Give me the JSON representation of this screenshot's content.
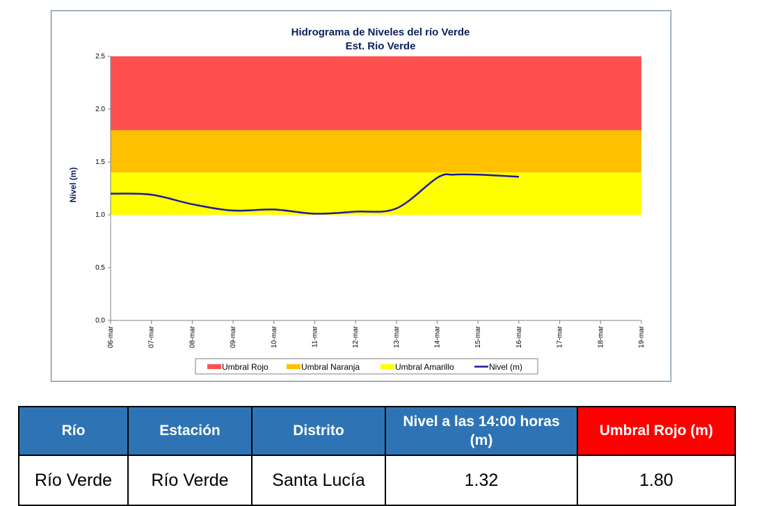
{
  "chart_data": {
    "type": "line",
    "title": "Hidrograma de Niveles del río Verde",
    "subtitle": "Est. Rio Verde",
    "ylabel": "Nivel (m)",
    "xlabel": "",
    "ylim": [
      0,
      2.5
    ],
    "yticks": [
      "0.0",
      "0.5",
      "1.0",
      "1.5",
      "2.0",
      "2.5"
    ],
    "categories": [
      "06-mar",
      "07-mar",
      "08-mar",
      "09-mar",
      "10-mar",
      "11-mar",
      "12-mar",
      "13-mar",
      "14-mar",
      "15-mar",
      "16-mar",
      "17-mar",
      "18-mar",
      "19-mar"
    ],
    "thresholds": [
      {
        "name": "Umbral Rojo",
        "from": 1.8,
        "to": 2.5,
        "color": "#ff5050"
      },
      {
        "name": "Umbral Naranja",
        "from": 1.4,
        "to": 1.8,
        "color": "#ffc000"
      },
      {
        "name": "Umbral Amarillo",
        "from": 1.0,
        "to": 1.4,
        "color": "#ffff00"
      }
    ],
    "series": [
      {
        "name": "Nivel (m)",
        "color": "#1a1a99",
        "x": [
          0,
          1,
          2,
          3,
          4,
          5,
          6,
          7,
          8,
          8.4,
          9,
          10
        ],
        "values": [
          1.2,
          1.19,
          1.1,
          1.04,
          1.05,
          1.01,
          1.03,
          1.06,
          1.35,
          1.38,
          1.38,
          1.36
        ]
      }
    ],
    "legend": {
      "position": "bottom",
      "items": [
        "Umbral Rojo",
        "Umbral Naranja",
        "Umbral Amarillo",
        "Nivel (m)"
      ]
    },
    "grid": false
  },
  "table": {
    "headers": [
      "Río",
      "Estación",
      "Distrito",
      "Nivel a las 14:00 horas (m)",
      "Umbral Rojo (m)"
    ],
    "row": [
      "Río Verde",
      "Río Verde",
      "Santa Lucía",
      "1.32",
      "1.80"
    ],
    "colors": {
      "header_blue": "#2e74b5",
      "header_red": "#ff0000"
    }
  }
}
